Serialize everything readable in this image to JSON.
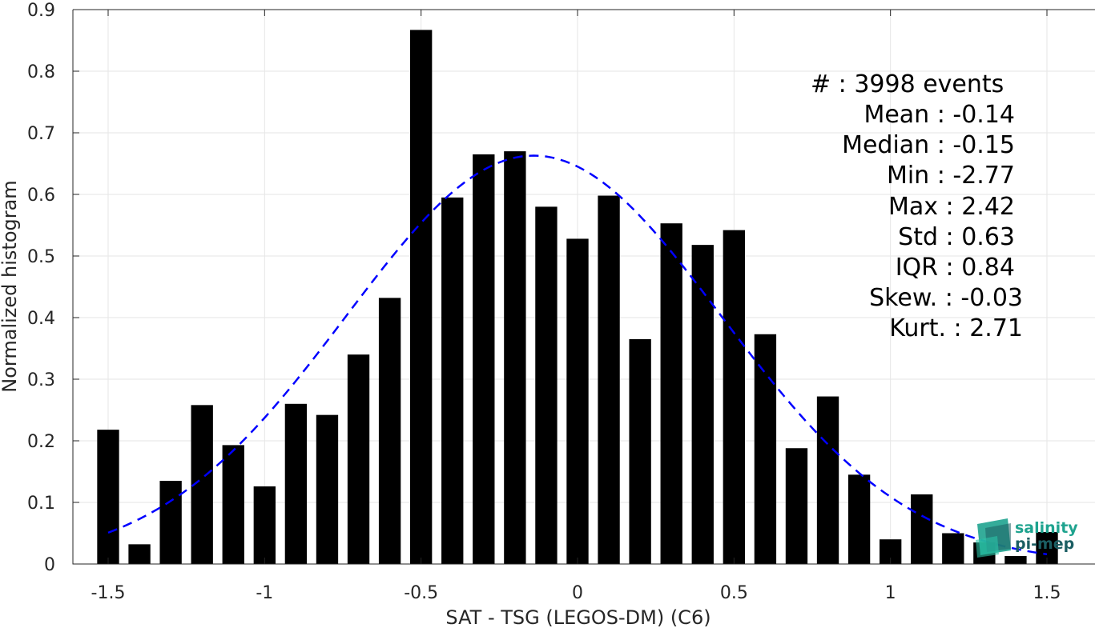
{
  "chart_data": {
    "type": "bar",
    "xlabel": "SAT - TSG (LEGOS-DM) (C6)",
    "ylabel": "Normalized histogram",
    "xlim": [
      -1.65,
      1.65
    ],
    "ylim": [
      0,
      0.9
    ],
    "grid": true,
    "x_ticks": [
      -1.5,
      -1,
      -0.5,
      0,
      0.5,
      1,
      1.5
    ],
    "x_tick_labels": [
      "-1.5",
      "-1",
      "-0.5",
      "0",
      "0.5",
      "1",
      "1.5"
    ],
    "y_ticks": [
      0,
      0.1,
      0.2,
      0.3,
      0.4,
      0.5,
      0.6,
      0.7,
      0.8,
      0.9
    ],
    "y_tick_labels": [
      "0",
      "0.1",
      "0.2",
      "0.3",
      "0.4",
      "0.5",
      "0.6",
      "0.7",
      "0.8",
      "0.9"
    ],
    "bar_width": 0.07,
    "bars": {
      "x": [
        -1.5,
        -1.4,
        -1.3,
        -1.2,
        -1.1,
        -1.0,
        -0.9,
        -0.8,
        -0.7,
        -0.6,
        -0.5,
        -0.4,
        -0.3,
        -0.2,
        -0.1,
        0.0,
        0.1,
        0.2,
        0.3,
        0.4,
        0.5,
        0.6,
        0.7,
        0.8,
        0.9,
        1.0,
        1.1,
        1.2,
        1.3,
        1.4,
        1.5
      ],
      "values": [
        0.218,
        0.032,
        0.135,
        0.258,
        0.193,
        0.126,
        0.26,
        0.242,
        0.34,
        0.432,
        0.867,
        0.595,
        0.665,
        0.67,
        0.58,
        0.528,
        0.598,
        0.365,
        0.553,
        0.518,
        0.542,
        0.373,
        0.188,
        0.272,
        0.145,
        0.04,
        0.113,
        0.05,
        0.035,
        0.013,
        0.052
      ],
      "color": "#000000"
    },
    "fit_curve": {
      "style": "dashed",
      "color": "#0000ff",
      "mean": -0.14,
      "std": 0.6,
      "peak": 0.663,
      "x_range": [
        -1.5,
        1.5
      ]
    },
    "stats": [
      "#  : 3998 events",
      "Mean : -0.14",
      "Median : -0.15",
      "Min : -2.77",
      "Max : 2.42",
      "Std : 0.63",
      "IQR : 0.84",
      "Skew. : -0.03",
      "Kurt. : 2.71"
    ]
  },
  "logo": {
    "line1": "salinity",
    "line2": "pi-mep",
    "color_primary": "#1fa38f",
    "color_dark": "#1b5e63"
  }
}
